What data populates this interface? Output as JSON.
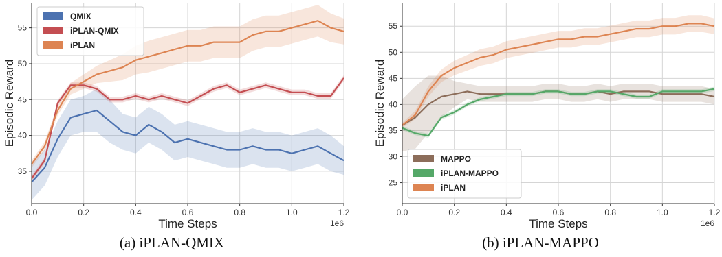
{
  "chart_data": [
    {
      "type": "line",
      "caption": "(a) iPLAN-QMIX",
      "xlabel": "Time Steps",
      "ylabel": "Episodic Reward",
      "x_multiplier_label": "1e6",
      "xlim": [
        0,
        1.2
      ],
      "ylim": [
        30.5,
        58.5
      ],
      "xticks": [
        "0.0",
        "0.2",
        "0.4",
        "0.6",
        "0.8",
        "1.0",
        "1.2"
      ],
      "yticks": [
        "35",
        "40",
        "45",
        "50",
        "55"
      ],
      "grid": true,
      "legend_position": "top-left",
      "x": [
        0.0,
        0.05,
        0.1,
        0.15,
        0.2,
        0.25,
        0.3,
        0.35,
        0.4,
        0.45,
        0.5,
        0.55,
        0.6,
        0.65,
        0.7,
        0.75,
        0.8,
        0.85,
        0.9,
        0.95,
        1.0,
        1.05,
        1.1,
        1.15,
        1.2
      ],
      "series": [
        {
          "name": "QMIX",
          "color": "#4c72b0",
          "values": [
            33.5,
            35.5,
            39.5,
            42.5,
            43.0,
            43.5,
            42.0,
            40.5,
            40.0,
            41.5,
            40.5,
            39.0,
            39.5,
            39.0,
            38.5,
            38.0,
            38.0,
            38.5,
            38.0,
            38.0,
            37.5,
            38.0,
            38.5,
            37.5,
            36.5
          ],
          "band": [
            2.5,
            2.5,
            2.5,
            2.5,
            2.5,
            3.0,
            3.0,
            2.5,
            2.5,
            2.5,
            2.5,
            2.5,
            2.5,
            2.5,
            2.5,
            2.5,
            2.5,
            2.5,
            2.5,
            2.5,
            2.5,
            2.5,
            2.5,
            2.5,
            2.0
          ]
        },
        {
          "name": "iPLAN-QMIX",
          "color": "#c44e52",
          "values": [
            34.0,
            36.5,
            44.5,
            47.0,
            47.0,
            46.5,
            45.0,
            45.0,
            45.5,
            45.0,
            45.5,
            45.0,
            44.5,
            45.5,
            46.5,
            47.0,
            46.0,
            46.5,
            47.0,
            46.5,
            46.0,
            46.0,
            45.5,
            45.5,
            48.0
          ],
          "band": [
            0.4,
            0.4,
            0.4,
            0.4,
            0.4,
            0.4,
            0.4,
            0.4,
            0.4,
            0.4,
            0.4,
            0.4,
            0.4,
            0.4,
            0.4,
            0.4,
            0.4,
            0.4,
            0.4,
            0.4,
            0.4,
            0.4,
            0.4,
            0.4,
            0.4
          ]
        },
        {
          "name": "iPLAN",
          "color": "#dd8452",
          "values": [
            36.0,
            38.5,
            43.5,
            46.5,
            47.5,
            48.5,
            49.0,
            49.5,
            50.5,
            51.0,
            51.5,
            52.0,
            52.5,
            52.5,
            53.0,
            53.0,
            53.0,
            54.0,
            54.5,
            54.5,
            55.0,
            55.5,
            56.0,
            55.0,
            54.5
          ],
          "band": [
            0.5,
            0.6,
            0.7,
            0.8,
            1.0,
            1.2,
            1.5,
            1.8,
            2.0,
            2.2,
            2.2,
            2.2,
            2.2,
            2.2,
            2.2,
            2.2,
            2.2,
            2.2,
            2.2,
            2.2,
            2.2,
            2.2,
            2.2,
            2.0,
            1.8
          ]
        }
      ]
    },
    {
      "type": "line",
      "caption": "(b) iPLAN-MAPPO",
      "xlabel": "Time Steps",
      "ylabel": "Episodic Reward",
      "x_multiplier_label": "1e6",
      "xlim": [
        0,
        1.2
      ],
      "ylim": [
        21,
        59.5
      ],
      "xticks": [
        "0.0",
        "0.2",
        "0.4",
        "0.6",
        "0.8",
        "1.0",
        "1.2"
      ],
      "yticks": [
        "25",
        "30",
        "35",
        "40",
        "45",
        "50",
        "55"
      ],
      "grid": true,
      "legend_position": "bottom-left",
      "x": [
        0.0,
        0.05,
        0.1,
        0.15,
        0.2,
        0.25,
        0.3,
        0.35,
        0.4,
        0.45,
        0.5,
        0.55,
        0.6,
        0.65,
        0.7,
        0.75,
        0.8,
        0.85,
        0.9,
        0.95,
        1.0,
        1.05,
        1.1,
        1.15,
        1.2
      ],
      "series": [
        {
          "name": "MAPPO",
          "color": "#8c6d5a",
          "values": [
            36.0,
            37.5,
            40.0,
            41.5,
            42.0,
            42.5,
            42.0,
            42.0,
            42.0,
            42.0,
            42.0,
            42.5,
            42.5,
            42.0,
            42.0,
            42.5,
            42.0,
            42.5,
            42.5,
            42.5,
            42.0,
            42.0,
            42.0,
            42.0,
            41.5
          ],
          "band": [
            5.0,
            6.0,
            5.5,
            4.0,
            2.5,
            1.5,
            1.5,
            1.5,
            1.5,
            1.5,
            1.5,
            1.5,
            1.5,
            1.5,
            1.5,
            1.5,
            1.5,
            1.5,
            1.5,
            1.5,
            1.5,
            1.5,
            1.5,
            1.5,
            1.5
          ]
        },
        {
          "name": "iPLAN-MAPPO",
          "color": "#55a868",
          "values": [
            35.5,
            34.5,
            34.0,
            37.5,
            38.5,
            40.0,
            41.0,
            41.5,
            42.0,
            42.0,
            42.0,
            42.5,
            42.5,
            42.0,
            42.0,
            42.5,
            42.5,
            42.0,
            41.5,
            41.5,
            42.5,
            42.5,
            42.5,
            42.5,
            43.0
          ],
          "band": [
            0.4,
            0.4,
            0.4,
            0.4,
            0.4,
            0.4,
            0.4,
            0.4,
            0.4,
            0.4,
            0.4,
            0.4,
            0.4,
            0.4,
            0.4,
            0.4,
            0.4,
            0.4,
            0.4,
            0.4,
            0.4,
            0.4,
            0.4,
            0.4,
            0.4
          ]
        },
        {
          "name": "iPLAN",
          "color": "#dd8452",
          "values": [
            36.0,
            38.0,
            42.5,
            45.5,
            47.0,
            48.0,
            49.0,
            49.5,
            50.5,
            51.0,
            51.5,
            52.0,
            52.5,
            52.5,
            53.0,
            53.0,
            53.5,
            54.0,
            54.5,
            54.5,
            55.0,
            55.0,
            55.5,
            55.5,
            55.0
          ],
          "band": [
            0.5,
            0.8,
            1.0,
            1.2,
            1.4,
            1.5,
            1.6,
            1.6,
            1.6,
            1.6,
            1.6,
            1.6,
            1.6,
            1.6,
            1.6,
            1.6,
            1.6,
            1.6,
            1.6,
            1.6,
            1.6,
            1.6,
            1.6,
            1.6,
            1.5
          ]
        }
      ]
    }
  ]
}
